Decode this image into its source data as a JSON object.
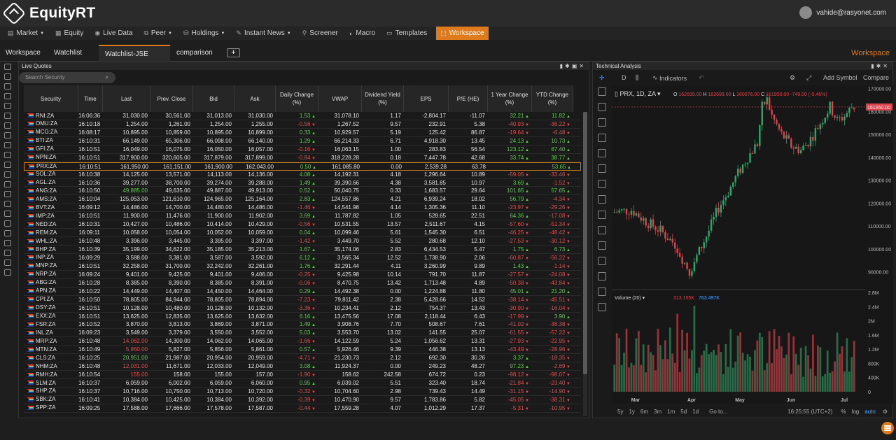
{
  "app": {
    "name": "EquityRT",
    "user": "vahide@rasyonet.com"
  },
  "menu": [
    {
      "label": "Market",
      "icon": "market-icon",
      "caret": true
    },
    {
      "label": "Equity",
      "icon": "equity-icon",
      "caret": false
    },
    {
      "label": "Live Data",
      "icon": "live-data-icon",
      "caret": false
    },
    {
      "label": "Peer",
      "icon": "peer-icon",
      "caret": true
    },
    {
      "label": "Holdings",
      "icon": "holdings-icon",
      "caret": true
    },
    {
      "label": "Instant News",
      "icon": "news-icon",
      "caret": true
    },
    {
      "label": "Screener",
      "icon": "screener-icon",
      "caret": false
    },
    {
      "label": "Macro",
      "icon": "macro-icon",
      "caret": false
    },
    {
      "label": "Templates",
      "icon": "templates-icon",
      "caret": false
    },
    {
      "label": "Workspace",
      "icon": "workspace-icon",
      "caret": false,
      "active": true
    }
  ],
  "tabs": [
    {
      "label": "Workspace"
    },
    {
      "label": "Watchlist"
    },
    {
      "label": "Watchlist-JSE",
      "active": true
    },
    {
      "label": "comparison"
    }
  ],
  "workspace_label": "Workspace",
  "live_quotes": {
    "title": "Live Quotes",
    "search_placeholder": "Search Security",
    "columns": [
      "Security",
      "Time",
      "Last",
      "Prev. Close",
      "Bid",
      "Ask",
      "Daily Change (%)",
      "VWAP",
      "Dividend Yield (%)",
      "EPS",
      "P/E (HE)",
      "1 Year Change (%)",
      "YTD Change (%)"
    ],
    "rows": [
      [
        "RNI:ZA",
        "16:06:36",
        "31,030.00",
        "30,561.00",
        "31,013.00",
        "31,030.00",
        "1.53",
        "31,078.10",
        "1.17",
        "-2,804.17",
        "-11.07",
        "32.21",
        "11.82"
      ],
      [
        "OMU:ZA",
        "16:10:18",
        "1,254.00",
        "1,261.00",
        "1,254.00",
        "1,255.00",
        "-0.56",
        "1,267.52",
        "9.57",
        "232.91",
        "5.38",
        "-40.93",
        "-36.22"
      ],
      [
        "MCG:ZA",
        "16:08:17",
        "10,895.00",
        "10,859.00",
        "10,895.00",
        "10,899.00",
        "0.33",
        "10,929.57",
        "5.19",
        "125.42",
        "86.87",
        "-19.64",
        "-6.48"
      ],
      [
        "BTI:ZA",
        "16:10:31",
        "66,149.00",
        "65,306.00",
        "66,098.00",
        "66,140.00",
        "1.29",
        "66,214.33",
        "6.71",
        "4,918.30",
        "13.45",
        "24.13",
        "10.73"
      ],
      [
        "GFI:ZA",
        "16:10:51",
        "16,049.00",
        "16,075.00",
        "16,050.00",
        "16,057.00",
        "-0.16",
        "16,063.15",
        "1.00",
        "283.83",
        "56.54",
        "123.12",
        "67.40"
      ],
      [
        "NPN:ZA",
        "16:10:51",
        "317,900.00",
        "320,605.00",
        "317,879.00",
        "317,899.00",
        "-0.84",
        "318,228.28",
        "0.18",
        "7,447.78",
        "42.68",
        "33.74",
        "38.77"
      ],
      [
        "PRX:ZA",
        "16:10:51",
        "161,950.00",
        "161,151.00",
        "161,900.00",
        "162,043.00",
        "0.50",
        "161,085.80",
        "0.00",
        "2,539.28",
        "63.78",
        "",
        "53.65"
      ],
      [
        "SOL:ZA",
        "16:10:38",
        "14,125.00",
        "13,571.00",
        "14,113.00",
        "14,136.00",
        "4.08",
        "14,192.31",
        "4.18",
        "1,296.64",
        "10.89",
        "-59.05",
        "-33.46"
      ],
      [
        "AGL:ZA",
        "16:10:36",
        "39,277.00",
        "38,700.00",
        "39,274.00",
        "39,288.00",
        "1.49",
        "39,390.66",
        "4.38",
        "3,581.85",
        "10.97",
        "3.69",
        "-1.52"
      ],
      [
        "ANG:ZA",
        "16:10:50",
        "49,885.00",
        "49,635.00",
        "49,887.00",
        "49,913.00",
        "0.52",
        "50,040.75",
        "0.33",
        "1,683.57",
        "29.64",
        "101.65",
        "57.65"
      ],
      [
        "AMS:ZA",
        "16:10:04",
        "125,053.00",
        "121,610.00",
        "124,965.00",
        "125,164.00",
        "2.83",
        "124,557.86",
        "4.21",
        "6,939.24",
        "18.02",
        "56.79",
        "-4.34"
      ],
      [
        "BVT:ZA",
        "16:09:12",
        "14,486.00",
        "14,700.00",
        "14,480.00",
        "14,486.00",
        "-1.46",
        "14,541.98",
        "4.14",
        "1,305.36",
        "11.10",
        "-23.97",
        "-29.26"
      ],
      [
        "IMP:ZA",
        "16:10:51",
        "11,900.00",
        "11,476.00",
        "11,900.00",
        "11,902.00",
        "3.69",
        "11,787.82",
        "1.05",
        "528.65",
        "22.51",
        "64.36",
        "-17.08"
      ],
      [
        "NED:ZA",
        "16:10:31",
        "10,427.00",
        "10,486.00",
        "10,414.00",
        "10,429.00",
        "-0.56",
        "10,531.55",
        "13.57",
        "2,511.67",
        "4.15",
        "-57.60",
        "-51.34"
      ],
      [
        "REM:ZA",
        "16:09:11",
        "10,058.00",
        "10,054.00",
        "10,052.00",
        "10,059.00",
        "0.04",
        "10,099.46",
        "5.61",
        "1,545.30",
        "6.51",
        "-46.25",
        "-48.42"
      ],
      [
        "WHL:ZA",
        "16:10:48",
        "3,396.00",
        "3,445.00",
        "3,395.00",
        "3,397.00",
        "-1.42",
        "3,449.70",
        "5.52",
        "280.68",
        "12.10",
        "-27.53",
        "-30.12"
      ],
      [
        "BHP:ZA",
        "16:10:39",
        "35,199.00",
        "34,622.00",
        "35,185.00",
        "35,213.00",
        "1.67",
        "35,174.06",
        "2.83",
        "6,434.53",
        "5.47",
        "1.75",
        "6.73"
      ],
      [
        "INP:ZA",
        "16:09:29",
        "3,588.00",
        "3,381.00",
        "3,587.00",
        "3,592.00",
        "6.12",
        "3,565.34",
        "12.52",
        "1,738.90",
        "2.06",
        "-60.87",
        "-56.22"
      ],
      [
        "MNP:ZA",
        "16:10:51",
        "32,258.00",
        "31,700.00",
        "32,242.00",
        "32,261.00",
        "1.76",
        "32,291.44",
        "4.11",
        "3,260.99",
        "9.89",
        "1.43",
        "-1.14"
      ],
      [
        "NRP:ZA",
        "16:09:24",
        "9,401.00",
        "9,425.00",
        "9,401.00",
        "9,406.00",
        "-0.25",
        "9,425.98",
        "10.14",
        "791.70",
        "11.87",
        "-27.57",
        "-24.08"
      ],
      [
        "ABG:ZA",
        "16:10:28",
        "8,385.00",
        "8,390.00",
        "8,385.00",
        "8,391.00",
        "-0.06",
        "8,470.75",
        "13.42",
        "1,713.48",
        "4.89",
        "-50.38",
        "-43.84"
      ],
      [
        "APN:ZA",
        "16:10:22",
        "14,449.00",
        "14,407.00",
        "14,450.00",
        "14,464.00",
        "0.29",
        "14,492.38",
        "0.00",
        "1,224.88",
        "11.80",
        "45.01",
        "21.20"
      ],
      [
        "CPI:ZA",
        "16:10:50",
        "78,805.00",
        "84,944.00",
        "78,805.00",
        "78,894.00",
        "-7.23",
        "79,811.42",
        "2.38",
        "5,428.66",
        "14.52",
        "-38.14",
        "-45.51"
      ],
      [
        "DSY:ZA",
        "16:10:51",
        "10,128.00",
        "10,480.00",
        "10,128.00",
        "10,132.00",
        "-3.36",
        "10,234.41",
        "2.12",
        "754.37",
        "13.43",
        "-30.90",
        "-16.04"
      ],
      [
        "EXX:ZA",
        "16:10:51",
        "13,625.00",
        "12,835.00",
        "13,625.00",
        "13,632.00",
        "6.16",
        "13,475.56",
        "17.08",
        "2,118.44",
        "6.43",
        "-17.99",
        "3.90"
      ],
      [
        "FSR:ZA",
        "16:10:52",
        "3,870.00",
        "3,813.00",
        "3,869.00",
        "3,871.00",
        "1.49",
        "3,908.76",
        "7.70",
        "508.67",
        "7.61",
        "-41.02",
        "-38.38"
      ],
      [
        "INL:ZA",
        "16:09:23",
        "3,549.00",
        "3,379.00",
        "3,550.00",
        "3,552.00",
        "5.03",
        "3,553.70",
        "13.02",
        "141.55",
        "25.07",
        "-61.55",
        "-57.22"
      ],
      [
        "MRP:ZA",
        "16:10:48",
        "14,062.00",
        "14,300.00",
        "14,062.00",
        "14,065.00",
        "-1.66",
        "14,122.59",
        "5.24",
        "1,056.62",
        "13.31",
        "-27.93",
        "-22.95"
      ],
      [
        "MTN:ZA",
        "16:10:49",
        "5,860.00",
        "5,827.00",
        "5,856.00",
        "5,861.00",
        "0.57",
        "5,926.46",
        "9.39",
        "446.38",
        "13.13",
        "-43.49",
        "-28.96"
      ],
      [
        "CLS:ZA",
        "16:10:25",
        "20,951.00",
        "21,987.00",
        "20,954.00",
        "20,959.00",
        "-4.71",
        "21,230.73",
        "2.12",
        "692.30",
        "30.26",
        "3.37",
        "-18.35"
      ],
      [
        "NHM:ZA",
        "16:10:48",
        "12,031.00",
        "11,671.00",
        "12,033.00",
        "12,049.00",
        "3.08",
        "11,924.37",
        "0.00",
        "249.23",
        "48.27",
        "97.23",
        "-2.69"
      ],
      [
        "RMH:ZA",
        "16:10:54",
        "155.00",
        "158.00",
        "155.00",
        "157.00",
        "-1.90",
        "158.62",
        "242.58",
        "674.72",
        "0.23",
        "-98.12",
        "-98.07"
      ],
      [
        "SLM:ZA",
        "16:10:37",
        "6,059.00",
        "6,002.00",
        "6,059.00",
        "6,060.00",
        "0.95",
        "6,039.02",
        "5.51",
        "323.40",
        "18.74",
        "-21.84",
        "-23.40"
      ],
      [
        "SHP:ZA",
        "16:10:37",
        "10,716.00",
        "10,750.00",
        "10,713.00",
        "10,720.00",
        "-0.32",
        "10,704.60",
        "2.98",
        "739.43",
        "14.49",
        "-31.15",
        "-14.90"
      ],
      [
        "SBK:ZA",
        "16:10:41",
        "10,384.00",
        "10,425.00",
        "10,384.00",
        "10,392.00",
        "-0.39",
        "10,470.90",
        "9.57",
        "1,783.86",
        "5.82",
        "-45.05",
        "-38.31"
      ],
      [
        "SPP:ZA",
        "16:09:25",
        "17,588.00",
        "17,666.00",
        "17,578.00",
        "17,587.00",
        "-0.44",
        "17,559.28",
        "4.07",
        "1,012.29",
        "17.37",
        "-5.31",
        "-10.95"
      ]
    ],
    "last_colors": {
      "ANG:ZA": "up",
      "MRP:ZA": "dn",
      "MTN:ZA": "dn",
      "CLS:ZA": "up",
      "NHM:ZA": "dn",
      "RMH:ZA": "dn"
    },
    "selected_row": "PRX:ZA"
  },
  "technical": {
    "title": "Technical Analysis",
    "interval": "D",
    "indicators_label": "Indicators",
    "add_symbol_label": "Add Symbol",
    "compare_label": "Compare",
    "symbol_line": "PRX, 1D, ZA",
    "ohlc": {
      "o_label": "O",
      "o": "162699.00",
      "h_label": "H",
      "h": "162699.00",
      "l_label": "L",
      "l": "160076.00",
      "c_label": "C",
      "c": "161950.00",
      "chg": "-749.00 (-0.46%)"
    },
    "last_price_tag": "161950.00",
    "volume_label": "Volume (20)",
    "volume_values": [
      "313.155K",
      "763.497K"
    ],
    "price_ticks": [
      "170000.00",
      "160000.00",
      "150000.00",
      "140000.00",
      "130000.00",
      "120000.00",
      "110000.00",
      "100000.00",
      "90000.00"
    ],
    "volume_ticks": [
      "2.8M",
      "2.4M",
      "2M",
      "1.6M",
      "1.2M",
      "800K",
      "400K",
      "0"
    ],
    "month_labels": [
      "Mar",
      "Apr",
      "May",
      "Jun",
      "Jul"
    ],
    "ranges": [
      "5y",
      "1y",
      "6m",
      "3m",
      "1m",
      "5d",
      "1d"
    ],
    "goto_label": "Go to...",
    "clock": "16:25:55 (UTC+2)",
    "bottom_right": [
      "%",
      "log",
      "auto"
    ]
  },
  "colors": {
    "accent": "#e07b1b",
    "up": "#2fa56a",
    "down": "#d9444d",
    "up_text": "#5fcf4f",
    "down_text": "#e05050"
  }
}
